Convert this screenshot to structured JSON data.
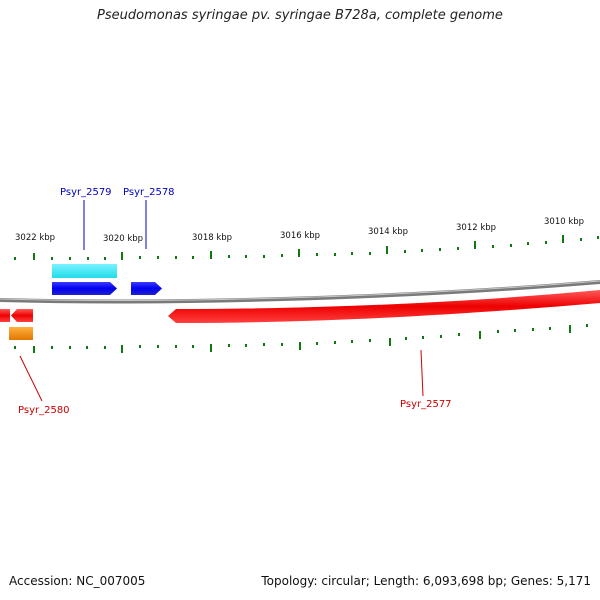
{
  "title": "Pseudomonas syringae pv. syringae B728a, complete genome",
  "footer": {
    "accession": "Accession: NC_007005",
    "summary": "Topology: circular; Length: 6,093,698 bp; Genes: 5,171"
  },
  "colors": {
    "forward_gene": "#0000ee",
    "forward_feature": "#33e6f0",
    "reverse_gene": "#ee0000",
    "reverse_feature": "#f08800",
    "backbone": "#7a7a7a",
    "tick": "#117711",
    "forward_label": "#0000bb",
    "reverse_label": "#cc0000"
  },
  "ruler": {
    "labels": [
      "3022 kbp",
      "3020 kbp",
      "3018 kbp",
      "3016 kbp",
      "3014 kbp",
      "3012 kbp",
      "3010 kbp"
    ]
  },
  "genes": [
    {
      "id": "Psyr_2579",
      "strand": "+"
    },
    {
      "id": "Psyr_2578",
      "strand": "+"
    },
    {
      "id": "Psyr_2580",
      "strand": "-"
    },
    {
      "id": "Psyr_2577",
      "strand": "-"
    }
  ]
}
